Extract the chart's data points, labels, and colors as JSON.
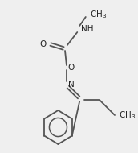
{
  "bg_color": "#efefef",
  "line_color": "#555555",
  "text_color": "#222222",
  "line_width": 1.3,
  "font_size": 7.5,
  "fig_width": 1.72,
  "fig_height": 1.9,
  "dpi": 100,
  "xlim": [
    0,
    172
  ],
  "ylim": [
    0,
    190
  ]
}
